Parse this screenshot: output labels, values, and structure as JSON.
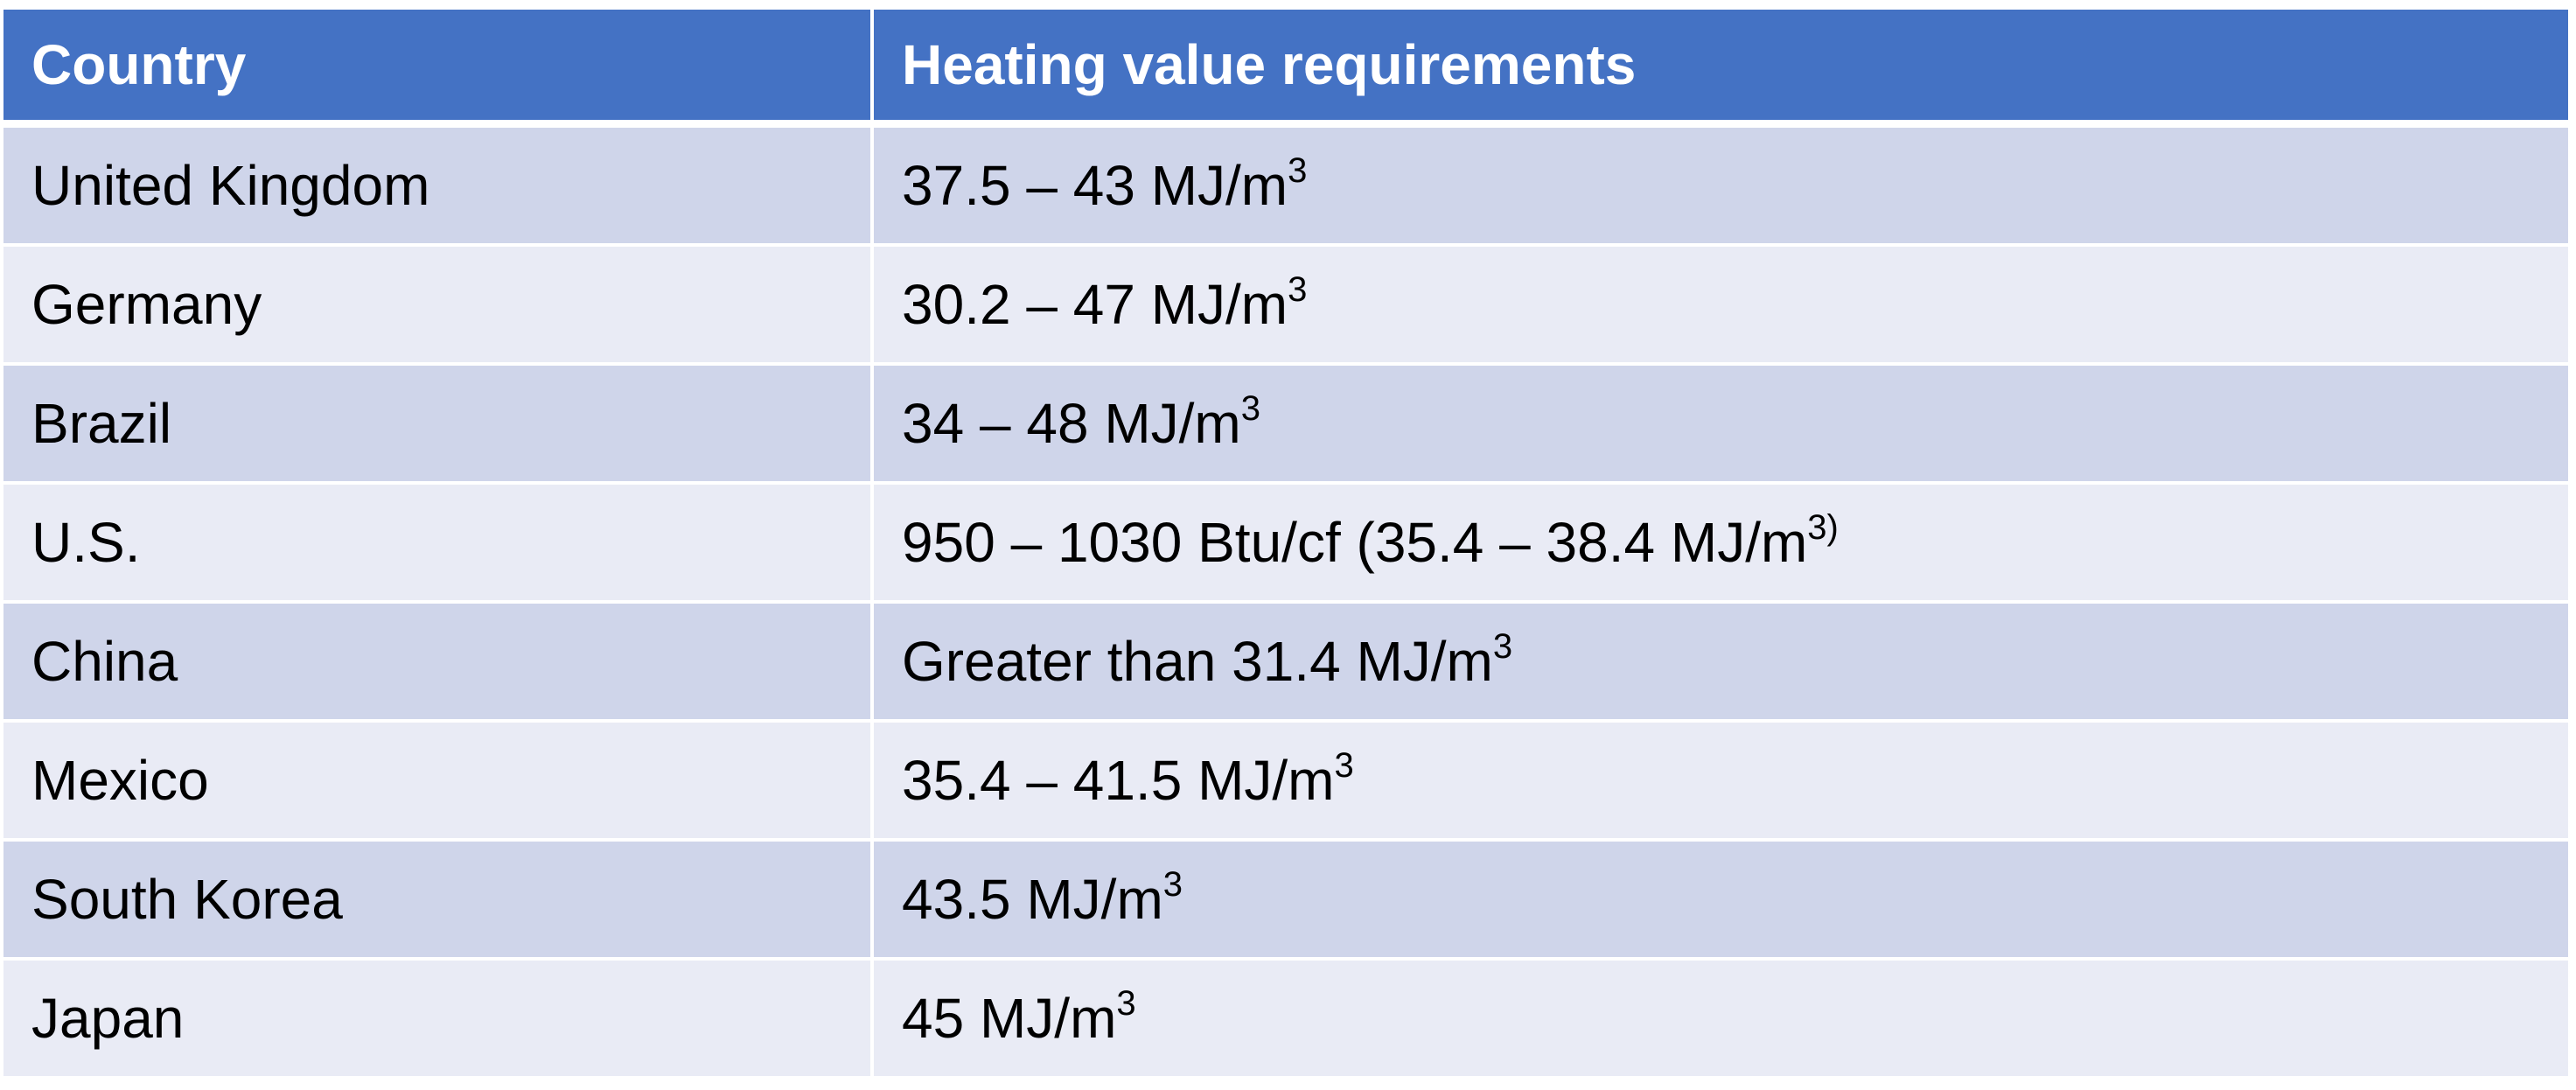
{
  "table": {
    "headers": [
      "Country",
      "Heating value requirements"
    ],
    "rows": [
      {
        "country": "United Kingdom",
        "value": "37.5 – 43 MJ/m",
        "sup": "3"
      },
      {
        "country": "Germany",
        "value": "30.2 – 47 MJ/m",
        "sup": "3"
      },
      {
        "country": "Brazil",
        "value": "34 – 48 MJ/m",
        "sup": "3"
      },
      {
        "country": "U.S.",
        "value": "950 – 1030 Btu/cf (35.4 – 38.4 MJ/m",
        "sup": "3)"
      },
      {
        "country": "China",
        "value": "Greater than 31.4 MJ/m",
        "sup": "3"
      },
      {
        "country": "Mexico",
        "value": "35.4 – 41.5 MJ/m",
        "sup": "3"
      },
      {
        "country": "South Korea",
        "value": "43.5 MJ/m",
        "sup": "3"
      },
      {
        "country": "Japan",
        "value": "45 MJ/m",
        "sup": "3"
      }
    ]
  },
  "colors": {
    "header_bg": "#4472c4",
    "row_dark": "#cfd5ea",
    "row_light": "#e9ebf5"
  }
}
